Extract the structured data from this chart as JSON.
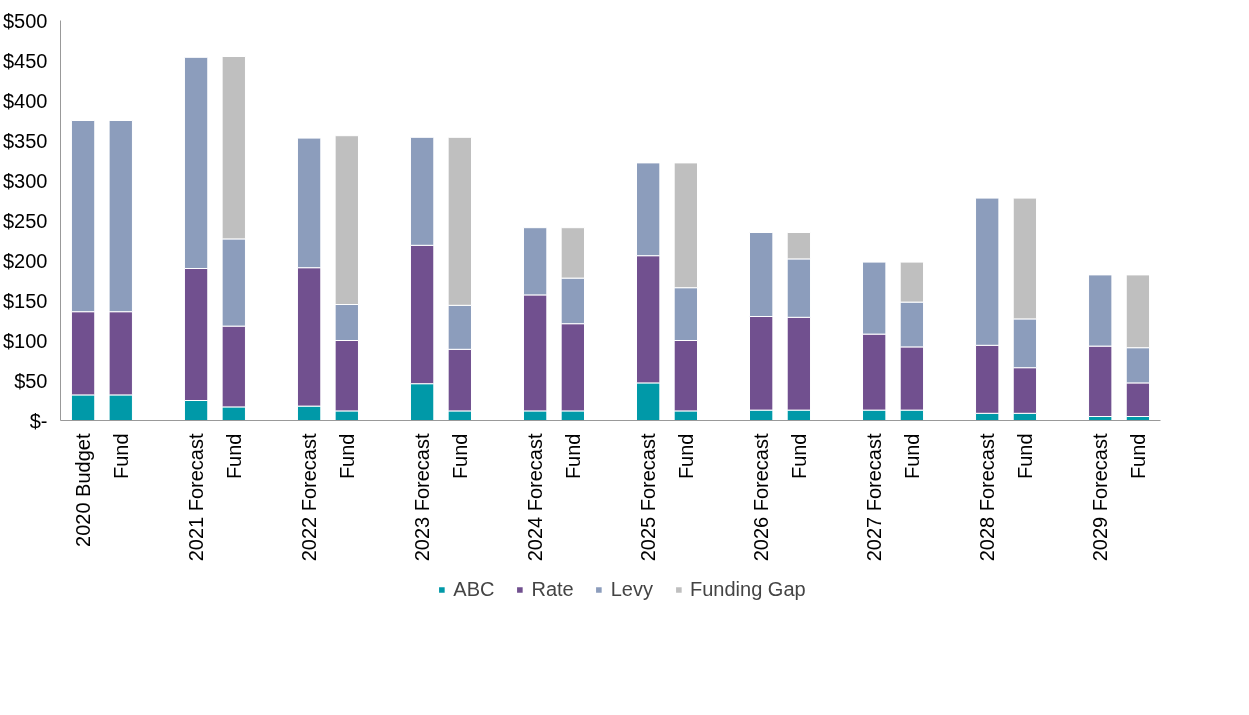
{
  "chart_data": {
    "type": "bar",
    "stacked": true,
    "legend": "bottom",
    "grid": false,
    "categories": [
      "2020 Budget",
      "Fund",
      null,
      "2021 Forecast",
      "Fund",
      null,
      "2022 Forecast",
      "Fund",
      null,
      "2023 Forecast",
      "Fund",
      null,
      "2024 Forecast",
      "Fund",
      null,
      "2025 Forecast",
      "Fund",
      null,
      "2026 Forecast",
      "Fund",
      null,
      "2027 Forecast",
      "Fund",
      null,
      "2028 Forecast",
      "Fund",
      null,
      "2029 Forecast",
      "Fund"
    ],
    "ylim": [
      0,
      500
    ],
    "yticks": [
      {
        "value": 0,
        "label": "$-"
      },
      {
        "value": 50,
        "label": "$50"
      },
      {
        "value": 100,
        "label": "$100"
      },
      {
        "value": 150,
        "label": "$150"
      },
      {
        "value": 200,
        "label": "$200"
      },
      {
        "value": 250,
        "label": "$250"
      },
      {
        "value": 300,
        "label": "$300"
      },
      {
        "value": 350,
        "label": "$350"
      },
      {
        "value": 400,
        "label": "$400"
      },
      {
        "value": 450,
        "label": "$450"
      },
      {
        "value": 500,
        "label": "$500"
      }
    ],
    "series": [
      {
        "name": "ABC",
        "color": "#0099a8",
        "values": [
          32,
          32,
          null,
          25,
          17,
          null,
          18,
          12,
          null,
          46,
          12,
          null,
          12,
          12,
          null,
          47,
          12,
          null,
          13,
          13,
          null,
          13,
          13,
          null,
          9,
          9,
          null,
          5,
          5
        ]
      },
      {
        "name": "Rate",
        "color": "#71508f",
        "values": [
          104,
          104,
          null,
          165,
          101,
          null,
          173,
          88,
          null,
          173,
          77,
          null,
          145,
          109,
          null,
          159,
          88,
          null,
          117,
          116,
          null,
          95,
          79,
          null,
          85,
          57,
          null,
          88,
          42
        ]
      },
      {
        "name": "Levy",
        "color": "#8c9dbc",
        "values": [
          239,
          239,
          null,
          264,
          109,
          null,
          162,
          45,
          null,
          135,
          55,
          null,
          84,
          57,
          null,
          116,
          66,
          null,
          105,
          73,
          null,
          90,
          56,
          null,
          184,
          61,
          null,
          89,
          44
        ]
      },
      {
        "name": "Funding Gap",
        "color": "#bfbfbf",
        "values": [
          null,
          null,
          null,
          null,
          228,
          null,
          null,
          211,
          null,
          null,
          210,
          null,
          null,
          63,
          null,
          null,
          156,
          null,
          null,
          33,
          null,
          null,
          50,
          null,
          null,
          151,
          null,
          null,
          91
        ]
      }
    ]
  }
}
